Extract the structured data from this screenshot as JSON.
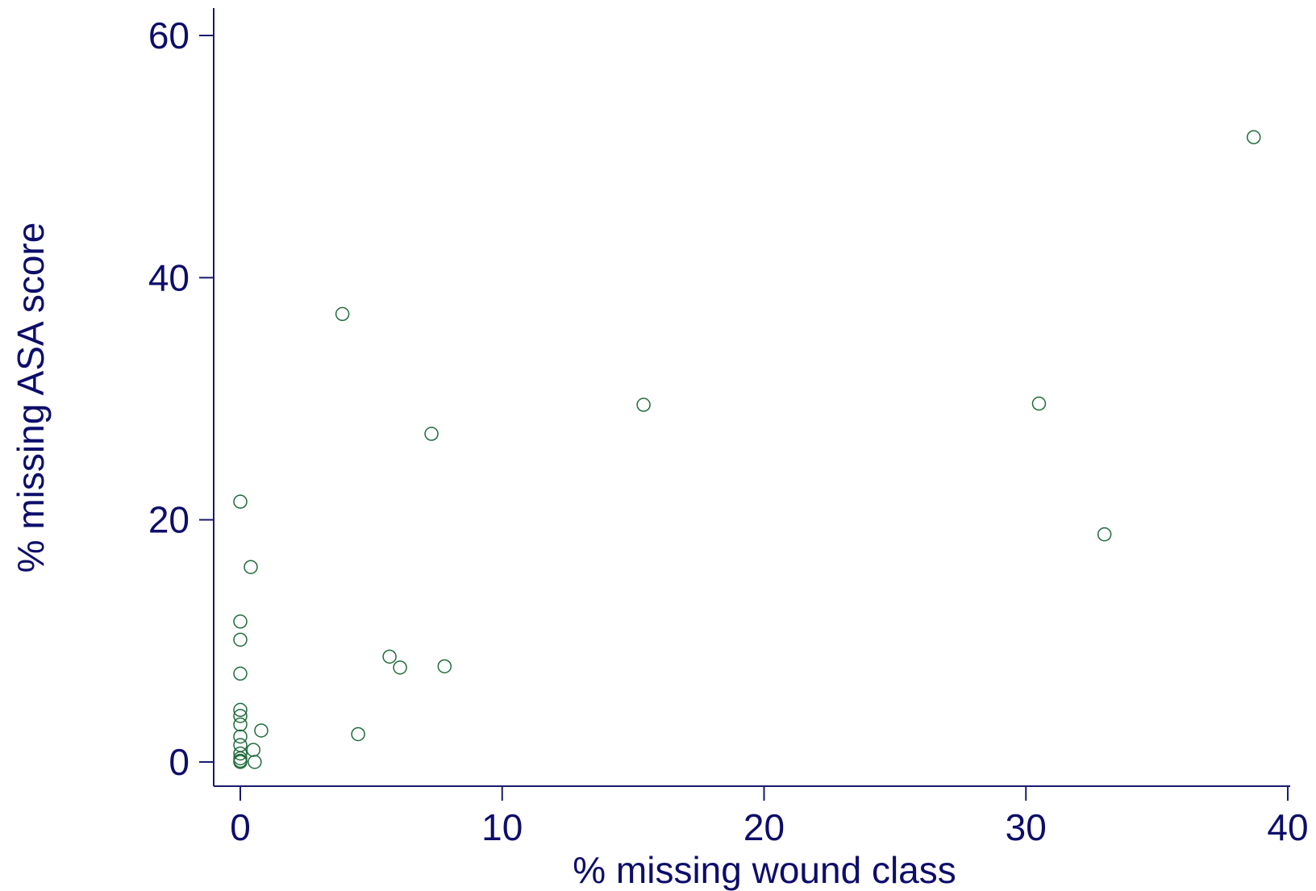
{
  "chart_data": {
    "type": "scatter",
    "title": "",
    "xlabel": "% missing wound class",
    "ylabel": "% missing ASA score",
    "xlim": [
      -1,
      41
    ],
    "ylim": [
      -2,
      62
    ],
    "xticks": [
      0,
      10,
      20,
      30,
      40
    ],
    "yticks": [
      0,
      20,
      40,
      60
    ],
    "xtick_labels": [
      "0",
      "10",
      "20",
      "30",
      "40"
    ],
    "ytick_labels": [
      "0",
      "20",
      "40",
      "60"
    ],
    "grid": false,
    "legend": "none",
    "marker": "hollow-circle",
    "colors": {
      "axis": "#1a1a6e",
      "text": "#0d0d6b",
      "marker": "#1f6b3a"
    },
    "series": [
      {
        "x": [
          38.7,
          3.9,
          15.4,
          30.5,
          7.3,
          0.0,
          33.0,
          0.4,
          0.0,
          0.0,
          0.0,
          5.7,
          6.1,
          7.8,
          0.0,
          0.0,
          0.0,
          0.8,
          4.5,
          0.0,
          0.0,
          0.0,
          0.5,
          0.0,
          0.0,
          0.55,
          0.0
        ],
        "y": [
          51.6,
          37.0,
          29.5,
          29.6,
          27.1,
          21.5,
          18.8,
          16.1,
          11.6,
          10.1,
          7.3,
          8.7,
          7.8,
          7.9,
          4.3,
          3.8,
          3.1,
          2.6,
          2.3,
          2.1,
          1.4,
          0.7,
          1.0,
          0.3,
          0.1,
          0.0,
          0.0
        ]
      }
    ]
  }
}
